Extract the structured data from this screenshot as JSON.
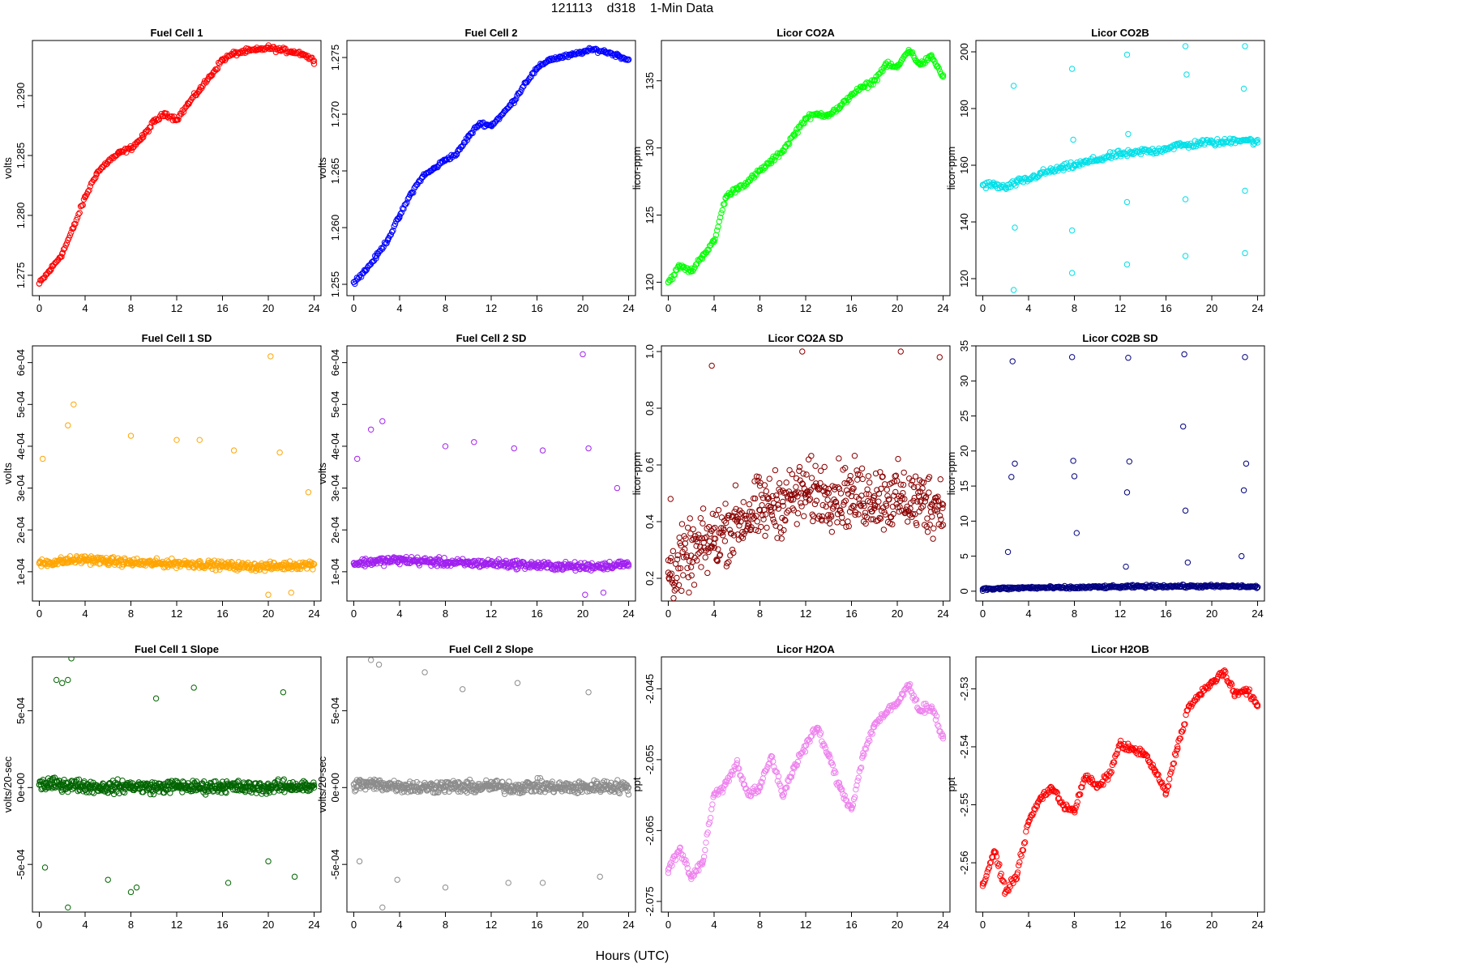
{
  "page": {
    "title": "121113    d318    1-Min Data",
    "xlabel": "Hours (UTC)"
  },
  "chart_data": [
    {
      "type": "scatter",
      "title": "Fuel Cell 1",
      "xlabel": "",
      "ylabel": "volts",
      "color": "#ff0000",
      "xlim": [
        -0.6,
        24.6
      ],
      "ylim": [
        1.2733,
        1.2946
      ],
      "xticks": [
        "0",
        "4",
        "8",
        "12",
        "16",
        "20",
        "24"
      ],
      "yticks": [
        "1.275",
        "1.280",
        "1.285",
        "1.290"
      ],
      "series": [
        {
          "x": [
            0,
            1,
            2,
            3,
            4,
            5,
            6,
            7,
            8,
            9,
            10,
            11,
            12,
            13,
            14,
            15,
            16,
            17,
            18,
            19,
            20,
            21,
            22,
            23,
            24
          ],
          "y": [
            1.2743,
            1.2755,
            1.2768,
            1.279,
            1.2815,
            1.2835,
            1.2845,
            1.2852,
            1.2856,
            1.2865,
            1.2878,
            1.2885,
            1.288,
            1.2893,
            1.2905,
            1.2917,
            1.293,
            1.2935,
            1.2937,
            1.2938,
            1.294,
            1.2938,
            1.2937,
            1.2935,
            1.2929
          ]
        }
      ]
    },
    {
      "type": "scatter",
      "title": "Fuel Cell 2",
      "xlabel": "",
      "ylabel": "volts",
      "color": "#0000ff",
      "xlim": [
        -0.6,
        24.6
      ],
      "ylim": [
        1.254,
        1.2765
      ],
      "xticks": [
        "0",
        "4",
        "8",
        "12",
        "16",
        "20",
        "24"
      ],
      "yticks": [
        "1.255",
        "1.260",
        "1.265",
        "1.270",
        "1.275"
      ],
      "series": [
        {
          "x": [
            0,
            1,
            2,
            3,
            4,
            5,
            6,
            7,
            8,
            9,
            10,
            11,
            12,
            13,
            14,
            15,
            16,
            17,
            18,
            19,
            20,
            21,
            22,
            23,
            24
          ],
          "y": [
            1.2552,
            1.2562,
            1.2575,
            1.259,
            1.261,
            1.263,
            1.2645,
            1.2652,
            1.266,
            1.2665,
            1.268,
            1.2692,
            1.269,
            1.27,
            1.2712,
            1.2728,
            1.274,
            1.2748,
            1.275,
            1.2752,
            1.2755,
            1.2757,
            1.2755,
            1.2752,
            1.2748
          ]
        }
      ]
    },
    {
      "type": "scatter",
      "title": "Licor CO2A",
      "xlabel": "",
      "ylabel": "licor-ppm",
      "color": "#00ff00",
      "xlim": [
        -0.6,
        24.6
      ],
      "ylim": [
        119,
        138
      ],
      "xticks": [
        "0",
        "4",
        "8",
        "12",
        "16",
        "20",
        "24"
      ],
      "yticks": [
        "120",
        "125",
        "130",
        "135"
      ],
      "series": [
        {
          "x": [
            0,
            1,
            2,
            3,
            4,
            5,
            6,
            7,
            8,
            9,
            10,
            11,
            12,
            13,
            14,
            15,
            16,
            17,
            18,
            19,
            20,
            21,
            22,
            23,
            24
          ],
          "y": [
            120.0,
            121.2,
            120.8,
            122.0,
            123.0,
            126.3,
            127.0,
            127.5,
            128.3,
            129.0,
            129.8,
            131.0,
            132.2,
            132.5,
            132.5,
            133.0,
            134.0,
            134.5,
            135.0,
            136.2,
            136.0,
            137.3,
            136.2,
            136.8,
            135.3
          ]
        }
      ]
    },
    {
      "type": "scatter",
      "title": "Licor CO2B",
      "xlabel": "",
      "ylabel": "licor-ppm",
      "color": "#00e0e8",
      "xlim": [
        -0.6,
        24.6
      ],
      "ylim": [
        114,
        204
      ],
      "xticks": [
        "0",
        "4",
        "8",
        "12",
        "16",
        "20",
        "24"
      ],
      "yticks": [
        "120",
        "140",
        "160",
        "180",
        "200"
      ],
      "series": [
        {
          "x": [
            0,
            1,
            2,
            3,
            4,
            5,
            6,
            7,
            8,
            9,
            10,
            11,
            12,
            13,
            14,
            15,
            16,
            17,
            18,
            19,
            20,
            21,
            22,
            23,
            24
          ],
          "y": [
            153,
            153,
            152,
            154,
            155,
            157,
            158,
            159,
            160,
            161,
            162,
            163,
            164,
            164,
            165,
            165,
            166,
            167,
            167,
            168,
            168,
            168,
            169,
            169,
            168
          ]
        }
      ],
      "outliers": {
        "x": [
          2.7,
          2.7,
          7.8,
          7.8,
          7.8,
          12.6,
          12.6,
          12.6,
          17.7,
          17.7,
          17.7,
          22.9,
          22.9,
          22.9,
          2.8,
          7.9,
          12.7,
          17.8,
          22.8
        ],
        "y": [
          188,
          116,
          194,
          122,
          137,
          199,
          125,
          147,
          202,
          128,
          148,
          202,
          129,
          151,
          138,
          169,
          171,
          192,
          187
        ]
      }
    },
    {
      "type": "scatter",
      "title": "Fuel Cell 1 SD",
      "xlabel": "",
      "ylabel": "volts",
      "color": "#ffa500",
      "xlim": [
        -0.6,
        24.6
      ],
      "ylim": [
        3e-05,
        0.00064
      ],
      "xticks": [
        "0",
        "4",
        "8",
        "12",
        "16",
        "20",
        "24"
      ],
      "yticks": [
        "1e-04",
        "2e-04",
        "3e-04",
        "4e-04",
        "5e-04",
        "6e-04"
      ],
      "series": [
        {
          "x": [
            0,
            2,
            4,
            6,
            8,
            10,
            12,
            14,
            16,
            18,
            20,
            22,
            24
          ],
          "y": [
            0.00012,
            0.000125,
            0.00013,
            0.000125,
            0.000122,
            0.00012,
            0.00012,
            0.000118,
            0.000115,
            0.000113,
            0.000112,
            0.000115,
            0.000118
          ]
        }
      ],
      "outliers": {
        "x": [
          3.0,
          20.2,
          2.5,
          8.0,
          12.0,
          14.0,
          17.0,
          21.0,
          0.3,
          23.5,
          22.0,
          20.0
        ],
        "y": [
          0.0005,
          0.000615,
          0.00045,
          0.000425,
          0.000415,
          0.000415,
          0.00039,
          0.000385,
          0.00037,
          0.00029,
          5e-05,
          4.5e-05
        ]
      }
    },
    {
      "type": "scatter",
      "title": "Fuel Cell 2 SD",
      "xlabel": "",
      "ylabel": "volts",
      "color": "#a020f0",
      "xlim": [
        -0.6,
        24.6
      ],
      "ylim": [
        3e-05,
        0.00064
      ],
      "xticks": [
        "0",
        "4",
        "8",
        "12",
        "16",
        "20",
        "24"
      ],
      "yticks": [
        "1e-04",
        "2e-04",
        "3e-04",
        "4e-04",
        "5e-04",
        "6e-04"
      ],
      "series": [
        {
          "x": [
            0,
            2,
            4,
            6,
            8,
            10,
            12,
            14,
            16,
            18,
            20,
            22,
            24
          ],
          "y": [
            0.00012,
            0.000125,
            0.000128,
            0.000125,
            0.000122,
            0.00012,
            0.00012,
            0.000118,
            0.000115,
            0.000113,
            0.000112,
            0.000115,
            0.000118
          ]
        }
      ],
      "outliers": {
        "x": [
          2.5,
          20.0,
          1.5,
          8.0,
          10.5,
          14.0,
          16.5,
          20.5,
          0.3,
          23.0,
          21.8,
          20.2
        ],
        "y": [
          0.00046,
          0.00062,
          0.00044,
          0.0004,
          0.00041,
          0.000395,
          0.00039,
          0.000395,
          0.00037,
          0.0003,
          5e-05,
          4.5e-05
        ]
      }
    },
    {
      "type": "scatter",
      "title": "Licor CO2A SD",
      "xlabel": "",
      "ylabel": "licor-ppm",
      "color": "#8b0000",
      "xlim": [
        -0.6,
        24.6
      ],
      "ylim": [
        0.12,
        1.02
      ],
      "xticks": [
        "0",
        "4",
        "8",
        "12",
        "16",
        "20",
        "24"
      ],
      "yticks": [
        "0.2",
        "0.4",
        "0.6",
        "0.8",
        "1.0"
      ],
      "series": [
        {
          "x": [
            0,
            2,
            4,
            6,
            8,
            10,
            12,
            14,
            16,
            18,
            20,
            22,
            24
          ],
          "y": [
            0.22,
            0.28,
            0.34,
            0.4,
            0.44,
            0.47,
            0.5,
            0.5,
            0.49,
            0.49,
            0.48,
            0.47,
            0.46
          ]
        }
      ],
      "outliers": {
        "x": [
          11.7,
          20.3,
          3.8,
          23.7,
          0.2
        ],
        "y": [
          1.0,
          1.0,
          0.95,
          0.98,
          0.48
        ]
      }
    },
    {
      "type": "scatter",
      "title": "Licor CO2B SD",
      "xlabel": "",
      "ylabel": "licor-ppm",
      "color": "#000080",
      "xlim": [
        -0.6,
        24.6
      ],
      "ylim": [
        -1.4,
        35
      ],
      "xticks": [
        "0",
        "4",
        "8",
        "12",
        "16",
        "20",
        "24"
      ],
      "yticks": [
        "0",
        "5",
        "10",
        "15",
        "20",
        "25",
        "30",
        "35"
      ],
      "series": [
        {
          "x": [
            0,
            2,
            4,
            6,
            8,
            10,
            12,
            14,
            16,
            18,
            20,
            22,
            24
          ],
          "y": [
            0.3,
            0.4,
            0.5,
            0.5,
            0.5,
            0.6,
            0.6,
            0.7,
            0.7,
            0.7,
            0.7,
            0.7,
            0.6
          ]
        }
      ],
      "outliers": {
        "x": [
          2.6,
          7.8,
          12.7,
          17.6,
          22.9,
          2.8,
          7.9,
          12.8,
          17.5,
          23.0,
          2.5,
          8.0,
          12.6,
          17.7,
          22.8,
          2.2,
          8.2,
          12.5,
          17.9,
          22.6
        ],
        "y": [
          32.8,
          33.4,
          33.3,
          33.8,
          33.4,
          18.2,
          18.6,
          18.5,
          23.5,
          18.2,
          16.3,
          16.4,
          14.1,
          11.5,
          14.4,
          5.6,
          8.3,
          3.5,
          4.1,
          5.0
        ]
      }
    },
    {
      "type": "scatter",
      "title": "Fuel Cell 1 Slope",
      "xlabel": "",
      "ylabel": "volts/20-sec",
      "color": "#006400",
      "xlim": [
        -0.6,
        24.6
      ],
      "ylim": [
        -0.00081,
        0.00085
      ],
      "xticks": [
        "0",
        "4",
        "8",
        "12",
        "16",
        "20",
        "24"
      ],
      "yticks": [
        "-5e-04",
        "0e+00",
        "5e-04"
      ],
      "series": [
        {
          "x": [
            0,
            2,
            4,
            6,
            8,
            10,
            12,
            14,
            16,
            18,
            20,
            22,
            24
          ],
          "y": [
            2e-05,
            2e-05,
            1e-05,
            0.0,
            1e-05,
            0.0,
            1e-05,
            0.0,
            1e-05,
            0.0,
            0.0,
            1e-05,
            0.0
          ]
        }
      ],
      "outliers": {
        "x": [
          2.8,
          2.5,
          1.5,
          2.0,
          13.5,
          10.2,
          21.3,
          0.5,
          6.0,
          8.0,
          16.5,
          20.0,
          22.3,
          8.5,
          2.5
        ],
        "y": [
          0.00084,
          0.0007,
          0.0007,
          0.00068,
          0.00065,
          0.00058,
          0.00062,
          -0.00052,
          -0.0006,
          -0.00068,
          -0.00062,
          -0.00048,
          -0.00058,
          -0.00065,
          -0.00078
        ]
      }
    },
    {
      "type": "scatter",
      "title": "Fuel Cell 2 Slope",
      "xlabel": "",
      "ylabel": "volts/20-sec",
      "color": "#8c8c8c",
      "xlim": [
        -0.6,
        24.6
      ],
      "ylim": [
        -0.00081,
        0.00085
      ],
      "xticks": [
        "0",
        "4",
        "8",
        "12",
        "16",
        "20",
        "24"
      ],
      "yticks": [
        "-5e-04",
        "0e+00",
        "5e-04"
      ],
      "series": [
        {
          "x": [
            0,
            2,
            4,
            6,
            8,
            10,
            12,
            14,
            16,
            18,
            20,
            22,
            24
          ],
          "y": [
            2e-05,
            2e-05,
            1e-05,
            0.0,
            1e-05,
            0.0,
            1e-05,
            0.0,
            1e-05,
            0.0,
            0.0,
            1e-05,
            0.0
          ]
        }
      ],
      "outliers": {
        "x": [
          1.5,
          2.2,
          6.2,
          9.5,
          14.3,
          20.5,
          0.5,
          3.8,
          8.0,
          13.5,
          16.5,
          21.5,
          2.5
        ],
        "y": [
          0.00083,
          0.0008,
          0.00075,
          0.00064,
          0.00068,
          0.00062,
          -0.00048,
          -0.0006,
          -0.00065,
          -0.00062,
          -0.00062,
          -0.00058,
          -0.00078
        ]
      }
    },
    {
      "type": "scatter",
      "title": "Licor H2OA",
      "xlabel": "",
      "ylabel": "ppt",
      "color": "#ee82ee",
      "xlim": [
        -0.6,
        24.6
      ],
      "ylim": [
        -2.0765,
        -2.0405
      ],
      "xticks": [
        "0",
        "4",
        "8",
        "12",
        "16",
        "20",
        "24"
      ],
      "yticks": [
        "-2.075",
        "-2.065",
        "-2.055",
        "-2.045"
      ],
      "series": [
        {
          "x": [
            0,
            1,
            2,
            3,
            4,
            5,
            6,
            7,
            8,
            9,
            10,
            11,
            12,
            13,
            14,
            15,
            16,
            17,
            18,
            19,
            20,
            21,
            22,
            23,
            24
          ],
          "y": [
            -2.0705,
            -2.0675,
            -2.0715,
            -2.0695,
            -2.06,
            -2.0585,
            -2.0555,
            -2.06,
            -2.059,
            -2.0545,
            -2.06,
            -2.056,
            -2.053,
            -2.0505,
            -2.0545,
            -2.059,
            -2.062,
            -2.0545,
            -2.05,
            -2.0485,
            -2.047,
            -2.0445,
            -2.048,
            -2.0475,
            -2.052
          ]
        }
      ]
    },
    {
      "type": "scatter",
      "title": "Licor H2OB",
      "xlabel": "",
      "ylabel": "ppt",
      "color": "#ff0000",
      "xlim": [
        -0.6,
        24.6
      ],
      "ylim": [
        -2.5685,
        -2.5245
      ],
      "xticks": [
        "0",
        "4",
        "8",
        "12",
        "16",
        "20",
        "24"
      ],
      "yticks": [
        "-2.56",
        "-2.55",
        "-2.54",
        "-2.53"
      ],
      "series": [
        {
          "x": [
            0,
            1,
            2,
            3,
            4,
            5,
            6,
            7,
            8,
            9,
            10,
            11,
            12,
            13,
            14,
            15,
            16,
            17,
            18,
            19,
            20,
            21,
            22,
            23,
            24
          ],
          "y": [
            -2.564,
            -2.558,
            -2.565,
            -2.562,
            -2.553,
            -2.549,
            -2.547,
            -2.55,
            -2.551,
            -2.545,
            -2.547,
            -2.545,
            -2.5395,
            -2.5405,
            -2.541,
            -2.544,
            -2.548,
            -2.54,
            -2.533,
            -2.531,
            -2.529,
            -2.527,
            -2.531,
            -2.53,
            -2.533
          ]
        }
      ]
    }
  ]
}
